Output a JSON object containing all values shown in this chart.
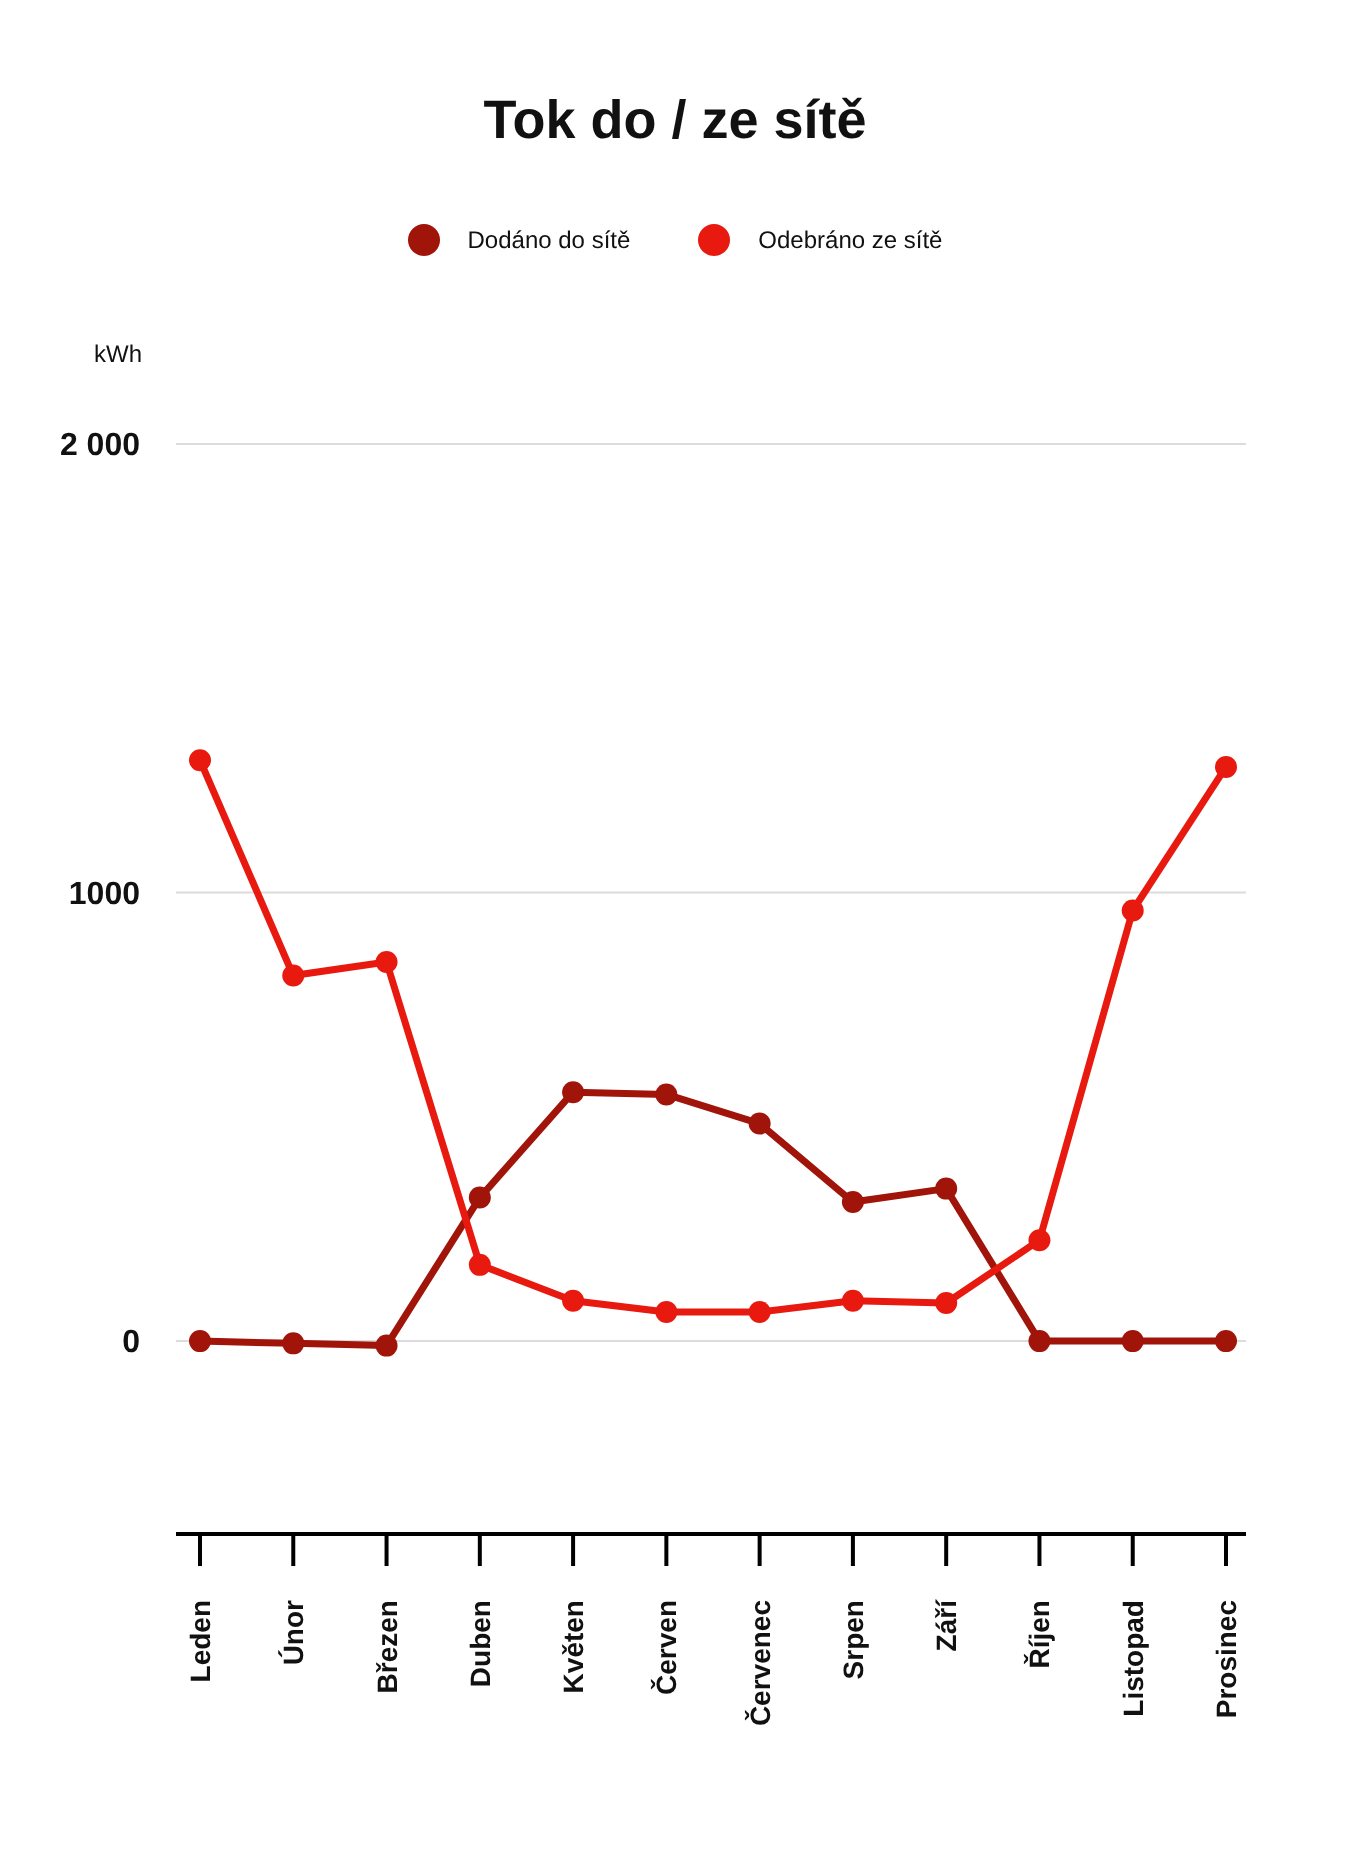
{
  "chart_data": {
    "type": "line",
    "title": "Tok do / ze sítě",
    "ylabel": "kWh",
    "categories": [
      "Leden",
      "Únor",
      "Březen",
      "Duben",
      "Květen",
      "Červen",
      "Červenec",
      "Srpen",
      "Září",
      "Říjen",
      "Listopad",
      "Prosinec"
    ],
    "series": [
      {
        "name": "Dodáno do sítě",
        "color": "#a0140a",
        "values": [
          0,
          -5,
          -10,
          320,
          555,
          550,
          485,
          310,
          340,
          0,
          0,
          0
        ]
      },
      {
        "name": "Odebráno ze sítě",
        "color": "#e81a0f",
        "values": [
          1295,
          815,
          845,
          170,
          90,
          65,
          65,
          90,
          85,
          225,
          960,
          1280
        ]
      }
    ],
    "ylim": [
      -430,
      2000
    ],
    "yticks": [
      0,
      1000,
      {
        "value": 2000,
        "label": "2 000"
      }
    ],
    "grid": "y",
    "legend": "top",
    "marker": "circle",
    "line_style": "solid"
  }
}
